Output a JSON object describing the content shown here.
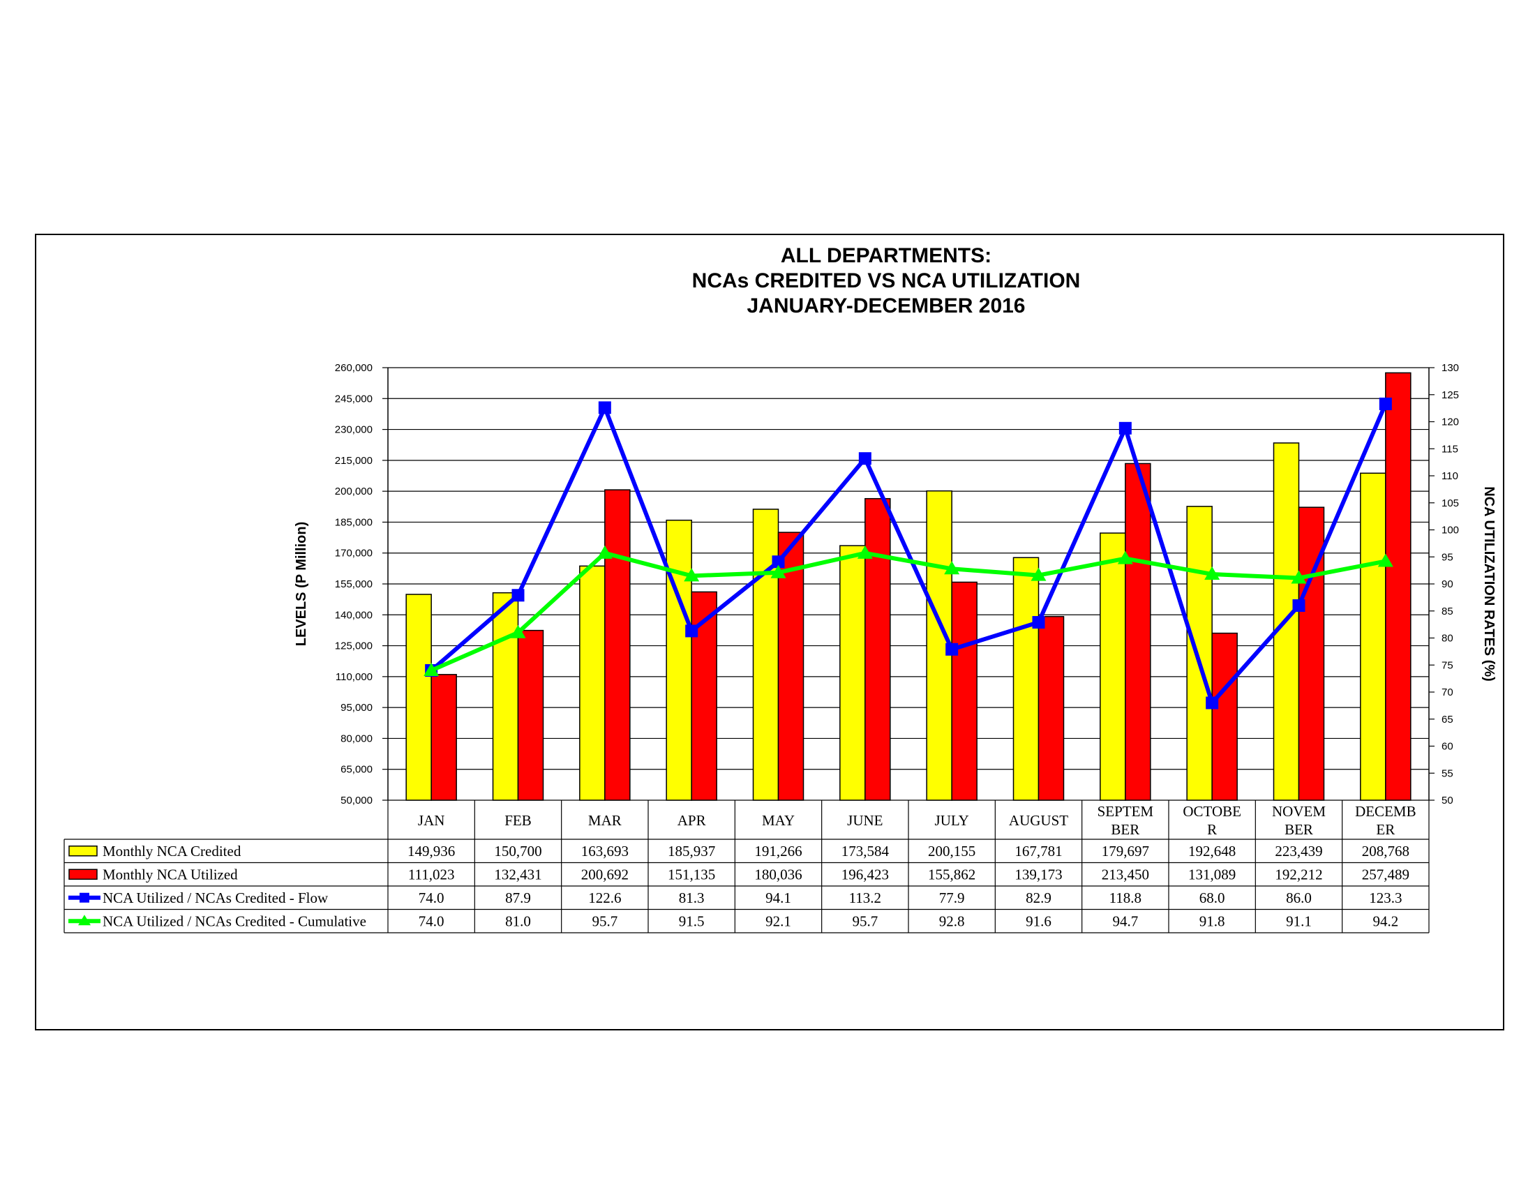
{
  "chart_data": {
    "type": "bar",
    "title_lines": [
      "ALL DEPARTMENTS:",
      "NCAs CREDITED VS NCA UTILIZATION",
      "JANUARY-DECEMBER 2016"
    ],
    "ylabel": "LEVELS (P Million)",
    "y2label": "NCA UTILIZATION RATES (%)",
    "ylim": [
      50000,
      260000
    ],
    "yticks": [
      50000,
      65000,
      80000,
      95000,
      110000,
      125000,
      140000,
      155000,
      170000,
      185000,
      200000,
      215000,
      230000,
      245000,
      260000
    ],
    "ytick_labels": [
      "50,000",
      "65,000",
      "80,000",
      "95,000",
      "110,000",
      "125,000",
      "140,000",
      "155,000",
      "170,000",
      "185,000",
      "200,000",
      "215,000",
      "230,000",
      "245,000",
      "260,000"
    ],
    "y2lim": [
      50,
      130
    ],
    "y2ticks": [
      50,
      55,
      60,
      65,
      70,
      75,
      80,
      85,
      90,
      95,
      100,
      105,
      110,
      115,
      120,
      125,
      130
    ],
    "grid": true,
    "legend": "data-table",
    "category_lines": [
      [
        "JAN"
      ],
      [
        "FEB"
      ],
      [
        "MAR"
      ],
      [
        "APR"
      ],
      [
        "MAY"
      ],
      [
        "JUNE"
      ],
      [
        "JULY"
      ],
      [
        "AUGUST"
      ],
      [
        "SEPTEM",
        "BER"
      ],
      [
        "OCTOBE",
        "R"
      ],
      [
        "NOVEM",
        "BER"
      ],
      [
        "DECEMB",
        "ER"
      ]
    ],
    "series": [
      {
        "name": "Monthly NCA Credited",
        "kind": "bar",
        "axis": "left",
        "color": "#ffff00",
        "values": [
          149936,
          150700,
          163693,
          185937,
          191266,
          173584,
          200155,
          167781,
          179697,
          192648,
          223439,
          208768
        ],
        "labels": [
          "149,936",
          "150,700",
          "163,693",
          "185,937",
          "191,266",
          "173,584",
          "200,155",
          "167,781",
          "179,697",
          "192,648",
          "223,439",
          "208,768"
        ]
      },
      {
        "name": "Monthly NCA Utilized",
        "kind": "bar",
        "axis": "left",
        "color": "#ff0000",
        "values": [
          111023,
          132431,
          200692,
          151135,
          180036,
          196423,
          155862,
          139173,
          213450,
          131089,
          192212,
          257489
        ],
        "labels": [
          "111,023",
          "132,431",
          "200,692",
          "151,135",
          "180,036",
          "196,423",
          "155,862",
          "139,173",
          "213,450",
          "131,089",
          "192,212",
          "257,489"
        ]
      },
      {
        "name": "NCA Utilized / NCAs Credited - Flow",
        "kind": "line",
        "axis": "right",
        "color": "#0000ff",
        "marker": "square",
        "values": [
          74.0,
          87.9,
          122.6,
          81.3,
          94.1,
          113.2,
          77.9,
          82.9,
          118.8,
          68.0,
          86.0,
          123.3
        ],
        "labels": [
          "74.0",
          "87.9",
          "122.6",
          "81.3",
          "94.1",
          "113.2",
          "77.9",
          "82.9",
          "118.8",
          "68.0",
          "86.0",
          "123.3"
        ]
      },
      {
        "name": "NCA Utilized / NCAs Credited - Cumulative",
        "kind": "line",
        "axis": "right",
        "color": "#00ff00",
        "marker": "triangle",
        "values": [
          74.0,
          81.0,
          95.7,
          91.5,
          92.1,
          95.7,
          92.8,
          91.6,
          94.7,
          91.8,
          91.1,
          94.2
        ],
        "labels": [
          "74.0",
          "81.0",
          "95.7",
          "91.5",
          "92.1",
          "95.7",
          "92.8",
          "91.6",
          "94.7",
          "91.8",
          "91.1",
          "94.2"
        ]
      }
    ]
  }
}
